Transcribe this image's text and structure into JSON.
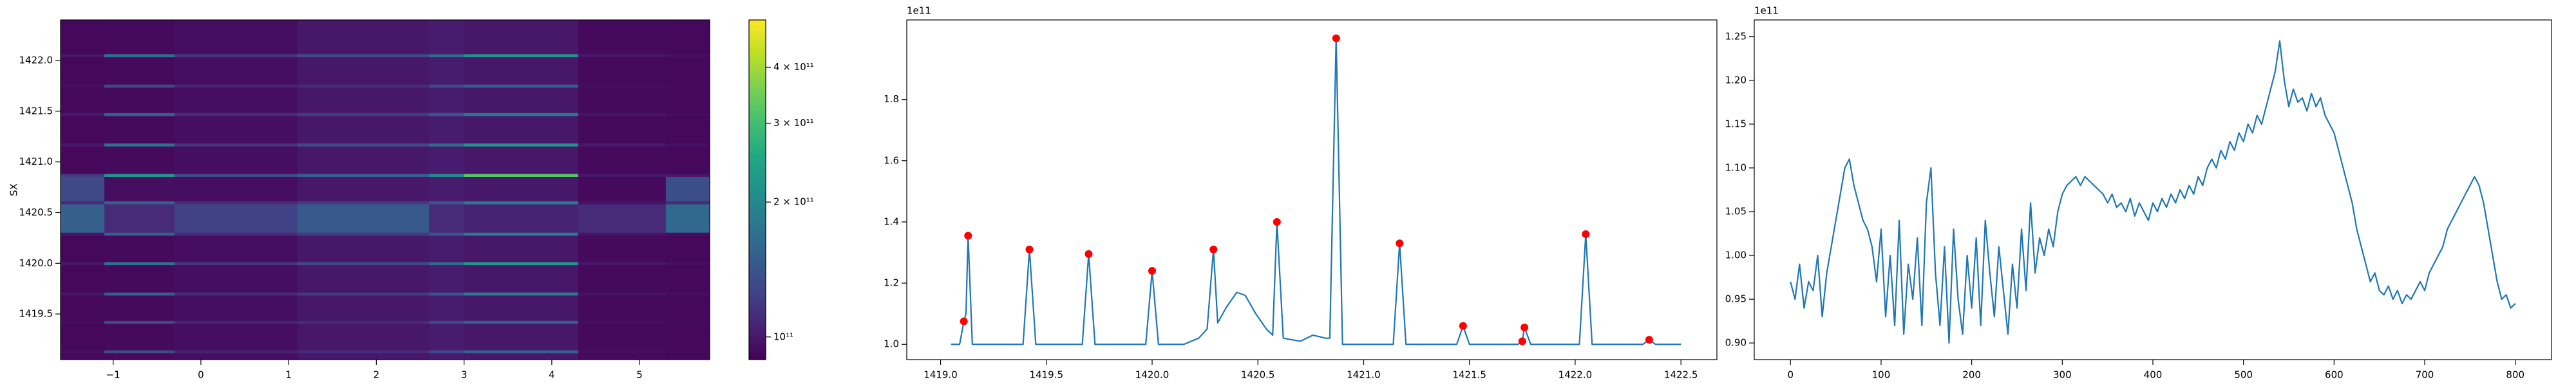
{
  "chart_data": [
    {
      "type": "heatmap",
      "ylabel": "SX",
      "xbins": [
        -1.6,
        -1.1,
        -0.3,
        1.1,
        2.6,
        3.0,
        4.3,
        5.3,
        5.8
      ],
      "ybins": [
        1419.05,
        1419.115,
        1419.145,
        1419.405,
        1419.435,
        1419.685,
        1419.715,
        1419.985,
        1420.015,
        1420.275,
        1420.305,
        1420.585,
        1420.615,
        1420.855,
        1420.885,
        1421.155,
        1421.185,
        1421.455,
        1421.485,
        1421.735,
        1421.765,
        1422.035,
        1422.065,
        1422.4
      ],
      "z": [
        [
          92000000000.0,
          93000000000.0,
          95000000000.0,
          100000000000.0,
          102000000000.0,
          100000000000.0,
          93000000000.0,
          92000000000.0
        ],
        [
          95000000000.0,
          130000000000.0,
          105000000000.0,
          110000000000.0,
          130000000000.0,
          150000000000.0,
          95000000000.0,
          93000000000.0
        ],
        [
          92000000000.0,
          93000000000.0,
          95000000000.0,
          100000000000.0,
          102000000000.0,
          100000000000.0,
          93000000000.0,
          92000000000.0
        ],
        [
          95000000000.0,
          130000000000.0,
          105000000000.0,
          110000000000.0,
          130000000000.0,
          150000000000.0,
          95000000000.0,
          93000000000.0
        ],
        [
          92000000000.0,
          93000000000.0,
          95000000000.0,
          100000000000.0,
          102000000000.0,
          100000000000.0,
          93000000000.0,
          92000000000.0
        ],
        [
          100000000000.0,
          150000000000.0,
          110000000000.0,
          120000000000.0,
          140000000000.0,
          180000000000.0,
          98000000000.0,
          95000000000.0
        ],
        [
          92000000000.0,
          93000000000.0,
          95000000000.0,
          100000000000.0,
          102000000000.0,
          100000000000.0,
          93000000000.0,
          92000000000.0
        ],
        [
          100000000000.0,
          170000000000.0,
          115000000000.0,
          130000000000.0,
          160000000000.0,
          220000000000.0,
          100000000000.0,
          96000000000.0
        ],
        [
          92000000000.0,
          93000000000.0,
          95000000000.0,
          100000000000.0,
          102000000000.0,
          100000000000.0,
          93000000000.0,
          92000000000.0
        ],
        [
          100000000000.0,
          150000000000.0,
          110000000000.0,
          120000000000.0,
          140000000000.0,
          180000000000.0,
          98000000000.0,
          95000000000.0
        ],
        [
          150000000000.0,
          110000000000.0,
          125000000000.0,
          145000000000.0,
          110000000000.0,
          105000000000.0,
          110000000000.0,
          160000000000.0
        ],
        [
          110000000000.0,
          150000000000.0,
          110000000000.0,
          120000000000.0,
          140000000000.0,
          180000000000.0,
          98000000000.0,
          110000000000.0
        ],
        [
          130000000000.0,
          95000000000.0,
          95000000000.0,
          100000000000.0,
          102000000000.0,
          100000000000.0,
          93000000000.0,
          135000000000.0
        ],
        [
          120000000000.0,
          220000000000.0,
          130000000000.0,
          150000000000.0,
          200000000000.0,
          320000000000.0,
          100000000000.0,
          100000000000.0
        ],
        [
          92000000000.0,
          93000000000.0,
          95000000000.0,
          100000000000.0,
          102000000000.0,
          100000000000.0,
          93000000000.0,
          92000000000.0
        ],
        [
          100000000000.0,
          170000000000.0,
          115000000000.0,
          130000000000.0,
          160000000000.0,
          220000000000.0,
          100000000000.0,
          96000000000.0
        ],
        [
          92000000000.0,
          93000000000.0,
          95000000000.0,
          100000000000.0,
          102000000000.0,
          100000000000.0,
          93000000000.0,
          92000000000.0
        ],
        [
          100000000000.0,
          150000000000.0,
          110000000000.0,
          120000000000.0,
          140000000000.0,
          180000000000.0,
          98000000000.0,
          95000000000.0
        ],
        [
          92000000000.0,
          93000000000.0,
          95000000000.0,
          100000000000.0,
          102000000000.0,
          100000000000.0,
          93000000000.0,
          92000000000.0
        ],
        [
          95000000000.0,
          130000000000.0,
          105000000000.0,
          110000000000.0,
          130000000000.0,
          150000000000.0,
          95000000000.0,
          93000000000.0
        ],
        [
          92000000000.0,
          93000000000.0,
          95000000000.0,
          100000000000.0,
          102000000000.0,
          100000000000.0,
          93000000000.0,
          92000000000.0
        ],
        [
          100000000000.0,
          170000000000.0,
          115000000000.0,
          130000000000.0,
          160000000000.0,
          220000000000.0,
          100000000000.0,
          96000000000.0
        ],
        [
          92000000000.0,
          93000000000.0,
          95000000000.0,
          100000000000.0,
          102000000000.0,
          100000000000.0,
          93000000000.0,
          92000000000.0
        ]
      ],
      "xlim": [
        -1.6,
        5.8
      ],
      "ylim": [
        1419.05,
        1422.4
      ],
      "xticks": [
        {
          "value": -1,
          "label": "−1"
        },
        0,
        1,
        2,
        3,
        4,
        5
      ],
      "yticks": [
        1419.5,
        {
          "value": 1420,
          "label": "1420.0"
        },
        1420.5,
        {
          "value": 1421,
          "label": "1421.0"
        },
        1421.5,
        {
          "value": 1422,
          "label": "1422.0"
        }
      ],
      "colorbar": {
        "scale": "log",
        "colormap": "viridis",
        "clim": [
          89000000000.0,
          510000000000.0
        ],
        "ticks": [
          {
            "value": 100000000000.0,
            "label": "10¹¹"
          },
          {
            "value": 200000000000.0,
            "label": "2 × 10¹¹"
          },
          {
            "value": 300000000000.0,
            "label": "3 × 10¹¹"
          },
          {
            "value": 400000000000.0,
            "label": "4 × 10¹¹"
          }
        ]
      }
    },
    {
      "type": "line",
      "offset_label": "1e11",
      "xlim": [
        1418.84,
        1422.67
      ],
      "ylim": [
        0.95,
        2.06
      ],
      "xticks": [
        {
          "value": 1419,
          "label": "1419.0"
        },
        1419.5,
        {
          "value": 1420,
          "label": "1420.0"
        },
        1420.5,
        {
          "value": 1421,
          "label": "1421.0"
        },
        1421.5,
        {
          "value": 1422,
          "label": "1422.0"
        },
        1422.5
      ],
      "yticks": [
        {
          "value": 1,
          "label": "1.0"
        },
        1.2,
        1.4,
        1.6,
        1.8
      ],
      "series": [
        {
          "style": "line",
          "color": "#1f77b4",
          "x": [
            1419.05,
            1419.09,
            1419.11,
            1419.12,
            1419.13,
            1419.15,
            1419.39,
            1419.42,
            1419.45,
            1419.67,
            1419.7,
            1419.73,
            1419.97,
            1420.0,
            1420.03,
            1420.15,
            1420.22,
            1420.26,
            1420.29,
            1420.31,
            1420.35,
            1420.4,
            1420.44,
            1420.49,
            1420.54,
            1420.57,
            1420.59,
            1420.62,
            1420.7,
            1420.76,
            1420.82,
            1420.84,
            1420.87,
            1420.9,
            1421.14,
            1421.17,
            1421.2,
            1421.44,
            1421.47,
            1421.5,
            1421.73,
            1421.75,
            1421.76,
            1421.79,
            1422.02,
            1422.05,
            1422.08,
            1422.32,
            1422.35,
            1422.38,
            1422.5
          ],
          "values": [
            1,
            1,
            1.075,
            1.1,
            1.355,
            1,
            1,
            1.31,
            1,
            1,
            1.295,
            1,
            1,
            1.24,
            1,
            1,
            1.02,
            1.05,
            1.31,
            1.07,
            1.12,
            1.17,
            1.16,
            1.1,
            1.05,
            1.03,
            1.4,
            1.02,
            1.01,
            1.03,
            1.02,
            1.02,
            2.0,
            1.0,
            1,
            1.33,
            1,
            1,
            1.06,
            1,
            1,
            1.01,
            1.055,
            1,
            1,
            1.36,
            1,
            1,
            1.015,
            1,
            1
          ]
        },
        {
          "style": "points",
          "color": "#ff0000",
          "x": [
            1419.11,
            1419.13,
            1419.42,
            1419.7,
            1420.0,
            1420.29,
            1420.59,
            1420.87,
            1421.17,
            1421.47,
            1421.75,
            1421.76,
            1422.05,
            1422.35
          ],
          "values": [
            1.075,
            1.355,
            1.31,
            1.295,
            1.24,
            1.31,
            1.4,
            2.0,
            1.33,
            1.06,
            1.01,
            1.055,
            1.36,
            1.015
          ]
        }
      ]
    },
    {
      "type": "line",
      "offset_label": "1e11",
      "xlim": [
        -40,
        840
      ],
      "ylim": [
        0.881,
        1.269
      ],
      "xticks": [
        0,
        100,
        200,
        300,
        400,
        500,
        600,
        700,
        800
      ],
      "yticks": [
        {
          "value": 0.9,
          "label": "0.90"
        },
        0.95,
        {
          "value": 1,
          "label": "1.00"
        },
        1.05,
        {
          "value": 1.1,
          "label": "1.10"
        },
        1.15,
        {
          "value": 1.2,
          "label": "1.20"
        },
        1.25
      ],
      "series": [
        {
          "style": "line",
          "color": "#1f77b4",
          "x": [
            0,
            5,
            10,
            15,
            20,
            25,
            30,
            35,
            40,
            45,
            50,
            55,
            60,
            65,
            70,
            75,
            80,
            85,
            90,
            95,
            100,
            105,
            110,
            115,
            120,
            125,
            130,
            135,
            140,
            145,
            150,
            155,
            160,
            165,
            170,
            175,
            180,
            185,
            190,
            195,
            200,
            205,
            210,
            215,
            220,
            225,
            230,
            235,
            240,
            245,
            250,
            255,
            260,
            265,
            270,
            275,
            280,
            285,
            290,
            295,
            300,
            305,
            310,
            315,
            320,
            325,
            330,
            335,
            340,
            345,
            350,
            355,
            360,
            365,
            370,
            375,
            380,
            385,
            390,
            395,
            400,
            405,
            410,
            415,
            420,
            425,
            430,
            435,
            440,
            445,
            450,
            455,
            460,
            465,
            470,
            475,
            480,
            485,
            490,
            495,
            500,
            505,
            510,
            515,
            520,
            525,
            530,
            535,
            540,
            545,
            550,
            555,
            560,
            565,
            570,
            575,
            580,
            585,
            590,
            595,
            600,
            605,
            610,
            615,
            620,
            625,
            630,
            635,
            640,
            645,
            650,
            655,
            660,
            665,
            670,
            675,
            680,
            685,
            690,
            695,
            700,
            705,
            710,
            715,
            720,
            725,
            730,
            735,
            740,
            745,
            750,
            755,
            760,
            765,
            770,
            775,
            780,
            785,
            790,
            795,
            800
          ],
          "values": [
            0.97,
            0.95,
            0.99,
            0.94,
            0.97,
            0.96,
            1.0,
            0.93,
            0.98,
            1.01,
            1.04,
            1.07,
            1.1,
            1.11,
            1.08,
            1.06,
            1.04,
            1.03,
            1.01,
            0.97,
            1.03,
            0.93,
            1.0,
            0.92,
            1.04,
            0.91,
            0.99,
            0.95,
            1.02,
            0.92,
            1.06,
            1.1,
            0.98,
            0.92,
            1.01,
            0.9,
            1.03,
            0.95,
            0.91,
            1.0,
            0.94,
            1.02,
            0.92,
            1.04,
            0.98,
            0.93,
            1.01,
            0.96,
            0.91,
            0.99,
            0.94,
            1.03,
            0.96,
            1.06,
            0.98,
            1.02,
            1.0,
            1.03,
            1.01,
            1.05,
            1.07,
            1.08,
            1.085,
            1.09,
            1.08,
            1.09,
            1.085,
            1.08,
            1.075,
            1.07,
            1.06,
            1.07,
            1.055,
            1.06,
            1.05,
            1.065,
            1.045,
            1.06,
            1.05,
            1.04,
            1.06,
            1.05,
            1.065,
            1.055,
            1.07,
            1.06,
            1.075,
            1.065,
            1.08,
            1.07,
            1.09,
            1.08,
            1.1,
            1.11,
            1.1,
            1.12,
            1.11,
            1.13,
            1.12,
            1.14,
            1.13,
            1.15,
            1.14,
            1.16,
            1.15,
            1.17,
            1.19,
            1.21,
            1.245,
            1.2,
            1.17,
            1.19,
            1.175,
            1.18,
            1.165,
            1.185,
            1.17,
            1.18,
            1.16,
            1.15,
            1.14,
            1.12,
            1.1,
            1.08,
            1.06,
            1.03,
            1.01,
            0.99,
            0.97,
            0.98,
            0.96,
            0.955,
            0.965,
            0.95,
            0.96,
            0.945,
            0.955,
            0.95,
            0.96,
            0.97,
            0.96,
            0.98,
            0.99,
            1.0,
            1.01,
            1.03,
            1.04,
            1.05,
            1.06,
            1.07,
            1.08,
            1.09,
            1.08,
            1.06,
            1.03,
            1.0,
            0.97,
            0.95,
            0.955,
            0.94,
            0.945
          ]
        }
      ]
    }
  ]
}
